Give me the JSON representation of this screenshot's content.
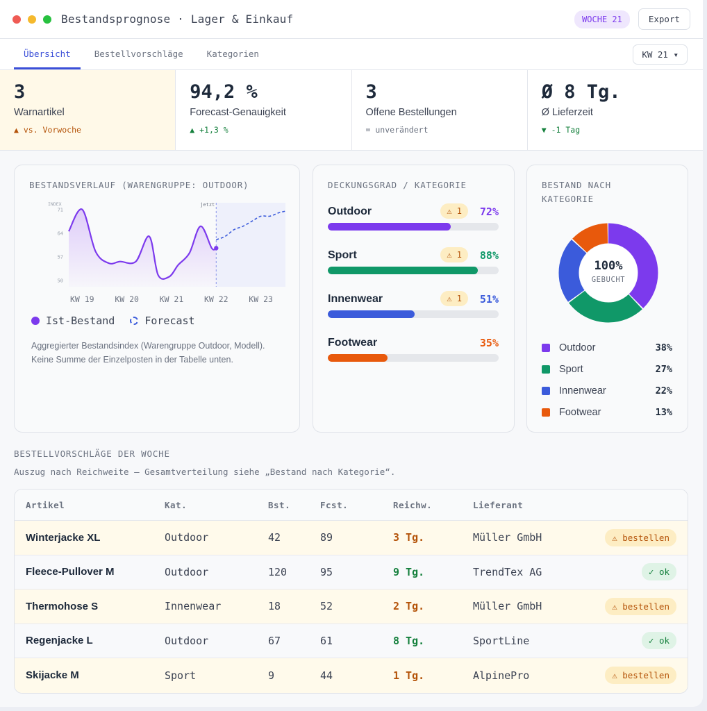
{
  "window": {
    "title": "Bestandsprognose · Lager & Einkauf",
    "week_badge": "WOCHE 21",
    "export_label": "Export"
  },
  "tabs": [
    {
      "label": "Übersicht",
      "active": true
    },
    {
      "label": "Bestellvorschläge",
      "active": false
    },
    {
      "label": "Kategorien",
      "active": false
    }
  ],
  "week_select": "KW 21 ▾",
  "kpis": [
    {
      "value": "3",
      "label": "Warnartikel",
      "delta": "▲ vs. Vorwoche",
      "tone": "warn"
    },
    {
      "value": "94,2 %",
      "label": "Forecast-Genauigkeit",
      "delta": "▲ +1,3 %",
      "tone": "good"
    },
    {
      "value": "3",
      "label": "Offene Bestellungen",
      "delta": "= unverändert",
      "tone": "neutral"
    },
    {
      "value": "Ø 8 Tg.",
      "label": "Ø Lieferzeit",
      "delta": "▼ -1 Tag",
      "tone": "good"
    }
  ],
  "stock_chart": {
    "title": "Bestandsverlauf (Warengruppe: Outdoor)",
    "legend_actual": "Ist-Bestand",
    "legend_forecast": "Forecast",
    "note": "Aggregierter Bestandsindex (Warengruppe Outdoor, Modell). Keine Summe der Einzelposten in der Tabelle unten."
  },
  "chart_data": {
    "type": "line",
    "ylabel": "INDEX",
    "yticks": [
      71,
      64,
      57,
      50
    ],
    "ylim": [
      48,
      73
    ],
    "x_ticks": [
      "KW 19",
      "KW 20",
      "KW 21",
      "KW 22",
      "KW 23"
    ],
    "now_label": "jetzt",
    "now_x": 22,
    "series": [
      {
        "name": "Ist-Bestand",
        "x": [
          18.7,
          19.0,
          19.3,
          19.6,
          19.85,
          20.2,
          20.5,
          20.7,
          20.95,
          21.15,
          21.4,
          21.65,
          21.9,
          22.0
        ],
        "values": [
          64.5,
          71.0,
          58.5,
          55.0,
          55.5,
          55.5,
          63.0,
          51.5,
          51.0,
          54.5,
          58.0,
          66.0,
          59.5,
          59.5
        ]
      },
      {
        "name": "Forecast",
        "x": [
          22.0,
          22.2,
          22.4,
          22.6,
          22.8,
          23.0,
          23.2,
          23.4,
          23.55
        ],
        "values": [
          62.0,
          63.0,
          65.0,
          66.0,
          67.5,
          69.0,
          69.0,
          70.0,
          70.5
        ]
      }
    ]
  },
  "coverage": {
    "title": "Deckungsgrad / Kategorie",
    "items": [
      {
        "name": "Outdoor",
        "warn": "⚠ 1",
        "pct_label": "72%",
        "value": 0.72,
        "color": "#7c3aed"
      },
      {
        "name": "Sport",
        "warn": "⚠ 1",
        "pct_label": "88%",
        "value": 0.88,
        "color": "#109868"
      },
      {
        "name": "Innenwear",
        "warn": "⚠ 1",
        "pct_label": "51%",
        "value": 0.51,
        "color": "#3b5bdb"
      },
      {
        "name": "Footwear",
        "warn": "",
        "pct_label": "35%",
        "value": 0.35,
        "color": "#e8590c"
      }
    ]
  },
  "donut": {
    "title": "Bestand nach Kategorie",
    "center_value": "100%",
    "center_label": "GEBUCHT",
    "items": [
      {
        "name": "Outdoor",
        "pct_label": "38%",
        "value": 38,
        "color": "#7c3aed"
      },
      {
        "name": "Sport",
        "pct_label": "27%",
        "value": 27,
        "color": "#109868"
      },
      {
        "name": "Innenwear",
        "pct_label": "22%",
        "value": 22,
        "color": "#3b5bdb"
      },
      {
        "name": "Footwear",
        "pct_label": "13%",
        "value": 13,
        "color": "#e8590c"
      }
    ]
  },
  "orders": {
    "title": "Bestellvorschläge der Woche",
    "subtitle": "Auszug nach Reichweite — Gesamtverteilung siehe „Bestand nach Kategorie“.",
    "columns": [
      "Artikel",
      "Kat.",
      "Bst.",
      "Fcst.",
      "Reichw.",
      "Lieferant",
      ""
    ],
    "rows": [
      {
        "item": "Winterjacke XL",
        "cat": "Outdoor",
        "stock": "42",
        "fcst": "89",
        "reach": "3 Tg.",
        "supplier": "Müller GmbH",
        "status": "⚠ bestellen",
        "state": "order"
      },
      {
        "item": "Fleece-Pullover M",
        "cat": "Outdoor",
        "stock": "120",
        "fcst": "95",
        "reach": "9 Tg.",
        "supplier": "TrendTex AG",
        "status": "✓ ok",
        "state": "ok"
      },
      {
        "item": "Thermohose S",
        "cat": "Innenwear",
        "stock": "18",
        "fcst": "52",
        "reach": "2 Tg.",
        "supplier": "Müller GmbH",
        "status": "⚠ bestellen",
        "state": "order"
      },
      {
        "item": "Regenjacke L",
        "cat": "Outdoor",
        "stock": "67",
        "fcst": "61",
        "reach": "8 Tg.",
        "supplier": "SportLine",
        "status": "✓ ok",
        "state": "ok"
      },
      {
        "item": "Skijacke M",
        "cat": "Sport",
        "stock": "9",
        "fcst": "44",
        "reach": "1 Tg.",
        "supplier": "AlpinePro",
        "status": "⚠ bestellen",
        "state": "order"
      }
    ]
  },
  "colors": {
    "warn": "#b45309",
    "good": "#15803d",
    "neutral": "#6b7280",
    "accent": "#3b4fd8",
    "actual_line": "#7c3aed",
    "forecast_line": "#3b5bdb"
  }
}
